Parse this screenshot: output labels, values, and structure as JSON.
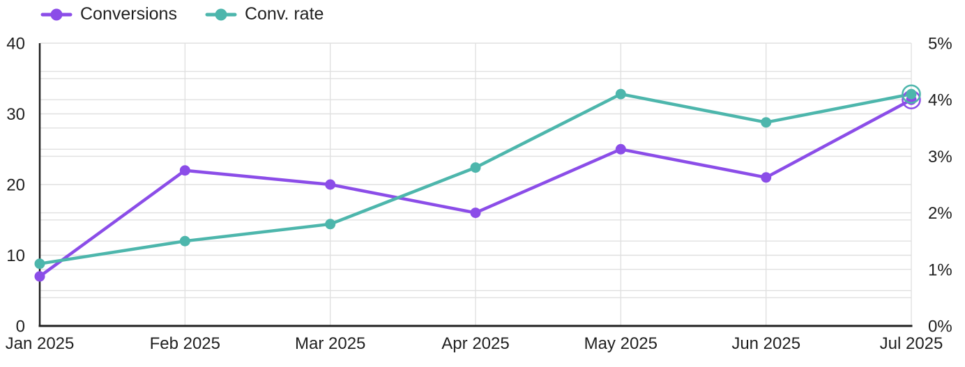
{
  "chart_data": {
    "type": "line",
    "title": "",
    "categories": [
      "Jan 2025",
      "Feb 2025",
      "Mar 2025",
      "Apr 2025",
      "May 2025",
      "Jun 2025",
      "Jul 2025"
    ],
    "series": [
      {
        "name": "Conversions",
        "axis": "left",
        "color": "#8b4de8",
        "values": [
          7,
          22,
          20,
          16,
          25,
          21,
          32
        ]
      },
      {
        "name": "Conv. rate",
        "axis": "right",
        "color": "#4db6ac",
        "unit": "%",
        "values": [
          1.1,
          1.5,
          1.8,
          2.8,
          4.1,
          3.6,
          4.1
        ]
      }
    ],
    "left_axis": {
      "min": 0,
      "max": 40,
      "tick_step": 10,
      "minor_step": 5,
      "tick_labels": [
        "0",
        "10",
        "20",
        "30",
        "40"
      ]
    },
    "right_axis": {
      "min": 0,
      "max": 5,
      "tick_step": 1,
      "minor_step": 0.5,
      "tick_labels": [
        "0%",
        "1%",
        "2%",
        "3%",
        "4%",
        "5%"
      ]
    },
    "grid": true,
    "legend_position": "top-left",
    "highlight_last_point": true,
    "colors": {
      "grid": "#e0e0e0",
      "axis": "#1f1f1f",
      "text": "#1f1f1f",
      "background": "#ffffff"
    }
  }
}
